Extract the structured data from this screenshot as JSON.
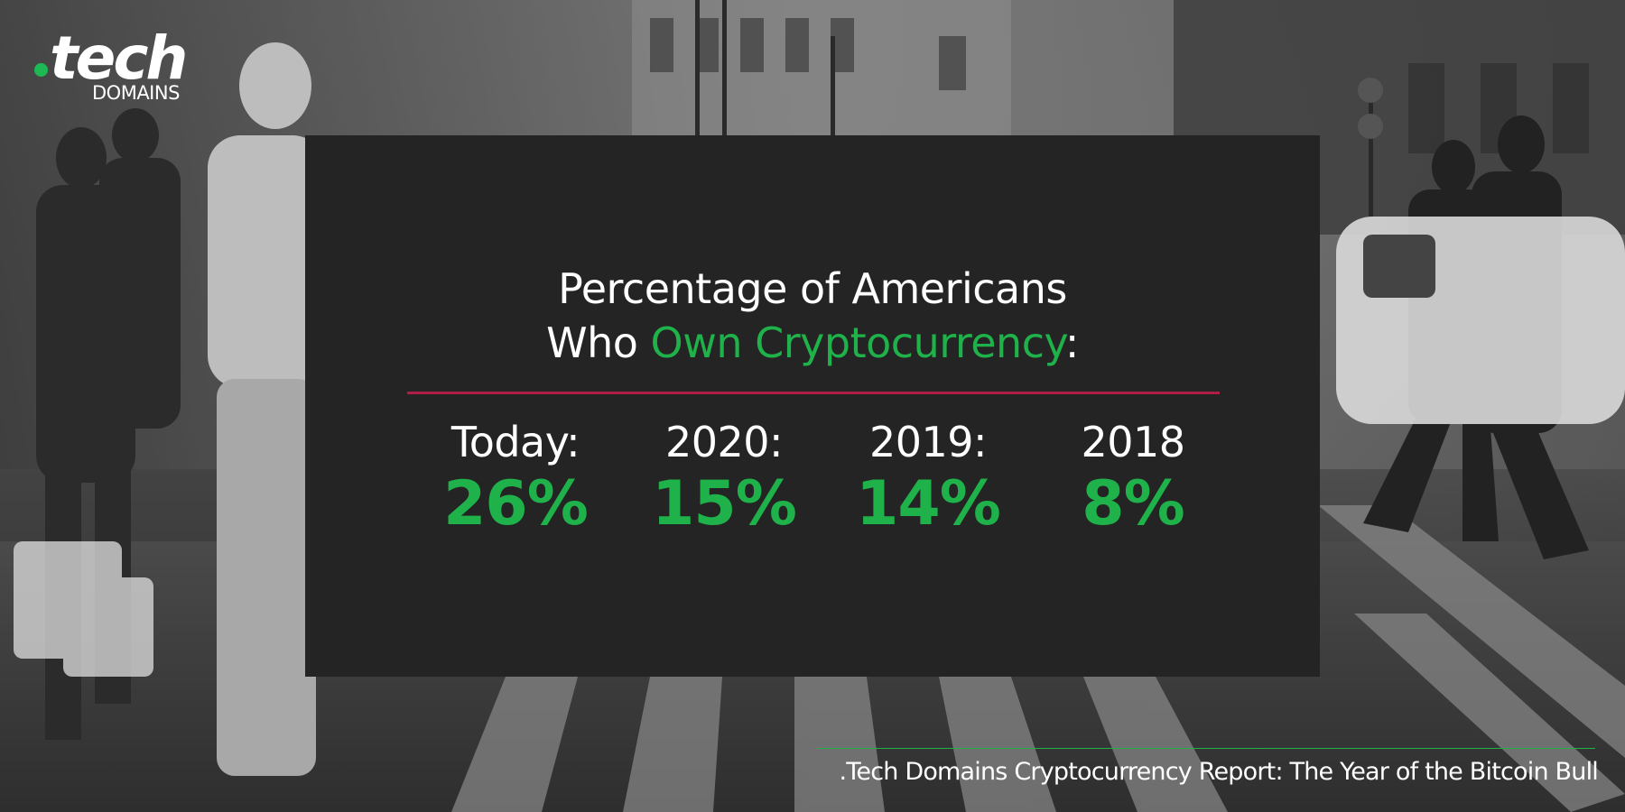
{
  "logo": {
    "wordmark": "tech",
    "subtext": "DOMAINS"
  },
  "heading": {
    "line1": "Percentage of Americans",
    "line2_prefix": "Who ",
    "line2_accent": "Own Cryptocurrency",
    "line2_suffix": ":"
  },
  "stats": [
    {
      "label": "Today:",
      "value": "26%"
    },
    {
      "label": "2020:",
      "value": "15%"
    },
    {
      "label": "2019:",
      "value": "14%"
    },
    {
      "label": "2018",
      "value": "8%"
    }
  ],
  "footer": {
    "text": ".Tech Domains Cryptocurrency Report: The Year of the Bitcoin Bull"
  },
  "colors": {
    "accent_green": "#1fb24a",
    "divider_red": "#b01e48",
    "panel": "#242424"
  }
}
